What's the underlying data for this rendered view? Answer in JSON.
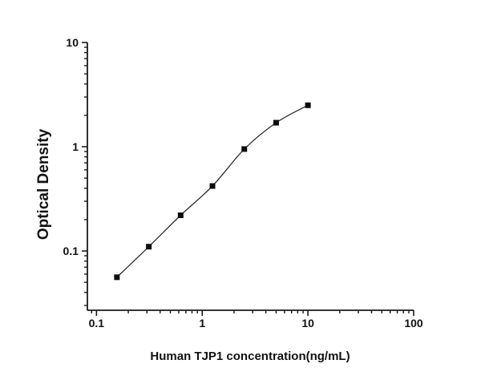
{
  "chart_data": {
    "type": "scatter",
    "subtype": "elisa-standard-curve",
    "title": "",
    "xlabel": "Human TJP1 concentration(ng/mL)",
    "ylabel": "Optical Density",
    "x_scale": "log",
    "y_scale": "log",
    "xlim": [
      0.082,
      100
    ],
    "ylim": [
      0.027,
      10
    ],
    "grid": false,
    "legend": false,
    "x_ticks": [
      {
        "v": 0.1,
        "label": "0.1"
      },
      {
        "v": 1,
        "label": "1"
      },
      {
        "v": 10,
        "label": "10"
      },
      {
        "v": 100,
        "label": "100"
      }
    ],
    "y_ticks": [
      {
        "v": 0.1,
        "label": "0.1"
      },
      {
        "v": 1,
        "label": "1"
      },
      {
        "v": 10,
        "label": "10"
      }
    ],
    "series": [
      {
        "name": "Human TJP1 standard curve",
        "marker": "filled-square",
        "line_style": "smooth-fit",
        "x": [
          0.156,
          0.3125,
          0.625,
          1.25,
          2.5,
          5,
          10
        ],
        "y": [
          0.056,
          0.11,
          0.22,
          0.42,
          0.95,
          1.7,
          2.5
        ]
      }
    ],
    "colors": {
      "background": "#ffffff",
      "axis": "#1a1a1a",
      "marker": "#0d0d0d",
      "curve": "#2b2b2b",
      "text": "#111111"
    }
  }
}
